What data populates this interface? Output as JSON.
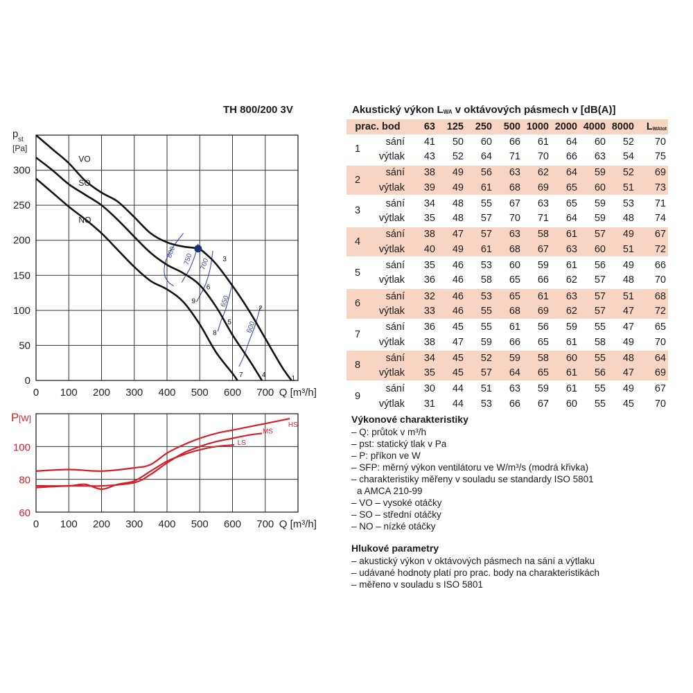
{
  "chart_title": "TH 800/200 3V",
  "chart_data": [
    {
      "type": "line",
      "title": "TH 800/200 3V",
      "xlabel": "Q [m³/h]",
      "ylabel_main": "p",
      "ylabel_sub": "st",
      "ylabel_unit": "[Pa]",
      "xlim": [
        0,
        800
      ],
      "ylim": [
        0,
        350
      ],
      "xticks": [
        0,
        100,
        200,
        300,
        400,
        500,
        600,
        700
      ],
      "yticks": [
        0,
        50,
        100,
        150,
        200,
        250,
        300
      ],
      "grid": true,
      "series": [
        {
          "name": "VO",
          "color": "#111111",
          "label_at": [
            130,
            312
          ],
          "points": [
            [
              0,
              350
            ],
            [
              50,
              330
            ],
            [
              100,
              310
            ],
            [
              150,
              285
            ],
            [
              200,
              268
            ],
            [
              250,
              255
            ],
            [
              300,
              233
            ],
            [
              350,
              210
            ],
            [
              400,
              197
            ],
            [
              450,
              191
            ],
            [
              495,
              188
            ],
            [
              520,
              180
            ],
            [
              550,
              166
            ],
            [
              600,
              135
            ],
            [
              650,
              100
            ],
            [
              700,
              60
            ],
            [
              750,
              20
            ],
            [
              780,
              0
            ]
          ]
        },
        {
          "name": "SO",
          "color": "#111111",
          "label_at": [
            130,
            278
          ],
          "points": [
            [
              0,
              318
            ],
            [
              50,
              300
            ],
            [
              100,
              280
            ],
            [
              150,
              265
            ],
            [
              200,
              250
            ],
            [
              250,
              229
            ],
            [
              300,
              205
            ],
            [
              350,
              182
            ],
            [
              400,
              165
            ],
            [
              450,
              153
            ],
            [
              500,
              136
            ],
            [
              550,
              105
            ],
            [
              600,
              65
            ],
            [
              650,
              30
            ],
            [
              690,
              0
            ]
          ]
        },
        {
          "name": "NO",
          "color": "#111111",
          "label_at": [
            130,
            225
          ],
          "points": [
            [
              0,
              288
            ],
            [
              50,
              268
            ],
            [
              100,
              248
            ],
            [
              150,
              230
            ],
            [
              200,
              210
            ],
            [
              250,
              186
            ],
            [
              300,
              162
            ],
            [
              350,
              142
            ],
            [
              400,
              130
            ],
            [
              450,
              112
            ],
            [
              500,
              80
            ],
            [
              550,
              40
            ],
            [
              600,
              10
            ],
            [
              615,
              0
            ]
          ]
        }
      ],
      "sfp_curves": [
        {
          "label": "800",
          "color": "#3d4a9c",
          "points": [
            [
              450,
              210
            ],
            [
              425,
              195
            ],
            [
              405,
              180
            ],
            [
              393,
              165
            ],
            [
              393,
              150
            ],
            [
              405,
              140
            ],
            [
              420,
              135
            ]
          ]
        },
        {
          "label": "750",
          "color": "#3d4a9c",
          "points": [
            [
              495,
              195
            ],
            [
              485,
              178
            ],
            [
              470,
              160
            ],
            [
              455,
              148
            ],
            [
              445,
              140
            ]
          ]
        },
        {
          "label": "700",
          "color": "#3d4a9c",
          "points": [
            [
              540,
              185
            ],
            [
              532,
              160
            ],
            [
              520,
              140
            ],
            [
              505,
              125
            ],
            [
              490,
              112
            ]
          ]
        },
        {
          "label": "650",
          "color": "#3d4a9c",
          "points": [
            [
              600,
              140
            ],
            [
              590,
              120
            ],
            [
              578,
              100
            ],
            [
              565,
              85
            ],
            [
              555,
              70
            ]
          ]
        },
        {
          "label": "600",
          "color": "#3d4a9c",
          "points": [
            [
              685,
              105
            ],
            [
              670,
              80
            ],
            [
              650,
              55
            ],
            [
              635,
              35
            ],
            [
              620,
              20
            ]
          ]
        }
      ],
      "sfp_label_positions": [
        [
          418,
          182
        ],
        [
          470,
          172
        ],
        [
          520,
          165
        ],
        [
          582,
          112
        ],
        [
          662,
          75
        ]
      ],
      "working_points": [
        {
          "label": "1",
          "q": 780,
          "p": 0
        },
        {
          "label": "2",
          "q": 680,
          "p": 100
        },
        {
          "label": "3",
          "q": 570,
          "p": 170
        },
        {
          "label": "4",
          "q": 690,
          "p": 5
        },
        {
          "label": "5",
          "q": 585,
          "p": 80
        },
        {
          "label": "6",
          "q": 520,
          "p": 130
        },
        {
          "label": "7",
          "q": 620,
          "p": 5
        },
        {
          "label": "8",
          "q": 540,
          "p": 65
        },
        {
          "label": "9",
          "q": 475,
          "p": 110
        }
      ],
      "marker": {
        "q": 495,
        "p": 188,
        "color": "#1f2f7a"
      }
    },
    {
      "type": "line",
      "xlabel": "Q [m³/h]",
      "ylabel_main": "P",
      "ylabel_unit": "[W]",
      "xlim": [
        0,
        800
      ],
      "ylim": [
        60,
        120
      ],
      "xticks": [
        0,
        100,
        200,
        300,
        400,
        500,
        600,
        700
      ],
      "yticks": [
        60,
        80,
        100
      ],
      "grid": true,
      "series": [
        {
          "name": "HS",
          "color": "#d41f2a",
          "label_at": [
            770,
            112
          ],
          "points": [
            [
              0,
              85
            ],
            [
              100,
              86
            ],
            [
              200,
              85
            ],
            [
              300,
              87
            ],
            [
              350,
              89
            ],
            [
              400,
              96
            ],
            [
              450,
              101
            ],
            [
              500,
              105
            ],
            [
              550,
              108
            ],
            [
              600,
              110
            ],
            [
              650,
              112
            ],
            [
              700,
              114
            ],
            [
              775,
              117
            ]
          ]
        },
        {
          "name": "MS",
          "color": "#d41f2a",
          "label_at": [
            692,
            108
          ],
          "points": [
            [
              0,
              75
            ],
            [
              100,
              76
            ],
            [
              200,
              76
            ],
            [
              300,
              78
            ],
            [
              350,
              83
            ],
            [
              400,
              90
            ],
            [
              450,
              96
            ],
            [
              500,
              100
            ],
            [
              550,
              103
            ],
            [
              600,
              105
            ],
            [
              650,
              107
            ],
            [
              690,
              108
            ]
          ]
        },
        {
          "name": "LS",
          "color": "#d41f2a",
          "label_at": [
            615,
            101
          ],
          "points": [
            [
              0,
              76
            ],
            [
              100,
              76
            ],
            [
              150,
              77
            ],
            [
              200,
              74
            ],
            [
              250,
              77
            ],
            [
              300,
              79
            ],
            [
              350,
              85
            ],
            [
              400,
              91
            ],
            [
              450,
              95
            ],
            [
              500,
              98
            ],
            [
              550,
              100
            ],
            [
              605,
              101
            ]
          ]
        }
      ]
    }
  ],
  "acoustic": {
    "title_main": "Akustický výkon L",
    "title_sub": "WA",
    "title_rest": " v oktávových pásmech v [dB(A)]",
    "header": [
      "prac. bod",
      "63",
      "125",
      "250",
      "500",
      "1000",
      "2000",
      "4000",
      "8000"
    ],
    "total_main": "L",
    "total_sub": "WAtot",
    "rows": [
      {
        "bod": "1",
        "sani": [
          "41",
          "50",
          "60",
          "66",
          "61",
          "64",
          "60",
          "52",
          "70"
        ],
        "vytlak": [
          "43",
          "52",
          "64",
          "71",
          "70",
          "66",
          "63",
          "54",
          "75"
        ]
      },
      {
        "bod": "2",
        "sani": [
          "38",
          "49",
          "56",
          "63",
          "62",
          "64",
          "59",
          "52",
          "69"
        ],
        "vytlak": [
          "39",
          "49",
          "61",
          "68",
          "69",
          "65",
          "60",
          "51",
          "73"
        ]
      },
      {
        "bod": "3",
        "sani": [
          "34",
          "48",
          "55",
          "67",
          "63",
          "65",
          "59",
          "53",
          "71"
        ],
        "vytlak": [
          "35",
          "48",
          "57",
          "70",
          "71",
          "64",
          "59",
          "48",
          "74"
        ]
      },
      {
        "bod": "4",
        "sani": [
          "38",
          "47",
          "57",
          "63",
          "58",
          "61",
          "57",
          "49",
          "67"
        ],
        "vytlak": [
          "40",
          "49",
          "61",
          "68",
          "67",
          "63",
          "60",
          "51",
          "72"
        ]
      },
      {
        "bod": "5",
        "sani": [
          "35",
          "46",
          "53",
          "60",
          "59",
          "61",
          "56",
          "49",
          "66"
        ],
        "vytlak": [
          "36",
          "46",
          "58",
          "65",
          "66",
          "62",
          "57",
          "48",
          "70"
        ]
      },
      {
        "bod": "6",
        "sani": [
          "32",
          "46",
          "53",
          "65",
          "61",
          "63",
          "57",
          "51",
          "68"
        ],
        "vytlak": [
          "33",
          "46",
          "55",
          "68",
          "69",
          "62",
          "57",
          "47",
          "72"
        ]
      },
      {
        "bod": "7",
        "sani": [
          "36",
          "45",
          "55",
          "61",
          "56",
          "59",
          "55",
          "47",
          "65"
        ],
        "vytlak": [
          "38",
          "47",
          "59",
          "66",
          "65",
          "61",
          "58",
          "49",
          "70"
        ]
      },
      {
        "bod": "8",
        "sani": [
          "34",
          "45",
          "52",
          "59",
          "58",
          "60",
          "55",
          "48",
          "64"
        ],
        "vytlak": [
          "35",
          "45",
          "57",
          "64",
          "65",
          "61",
          "56",
          "47",
          "69"
        ]
      },
      {
        "bod": "9",
        "sani": [
          "30",
          "44",
          "51",
          "63",
          "59",
          "61",
          "55",
          "49",
          "67"
        ],
        "vytlak": [
          "31",
          "44",
          "53",
          "66",
          "67",
          "60",
          "55",
          "45",
          "70"
        ]
      }
    ],
    "side_sani": "sání",
    "side_vytlak": "výtlak"
  },
  "performance_notes": {
    "heading": "Výkonové charakteristiky",
    "items": [
      "– Q: průtok v m³/h",
      "– pst: statický tlak v Pa",
      "– P: příkon ve W",
      "– SFP: měrný výkon ventilátoru ve W/m³/s (modrá křivka)",
      "– charakteristiky měřeny v souladu se standardy ISO 5801",
      "a AMCA 210-99",
      "– VO – vysoké otáčky",
      "– SO – střední otáčky",
      "– NO – nízké otáčky"
    ]
  },
  "noise_notes": {
    "heading": "Hlukové parametry",
    "items": [
      "– akustický výkon v oktávových pásmech na sání a výtlaku",
      "– udávané hodnoty platí pro prac. body na charakteristikách",
      "– měřeno v souladu s ISO 5801"
    ]
  }
}
